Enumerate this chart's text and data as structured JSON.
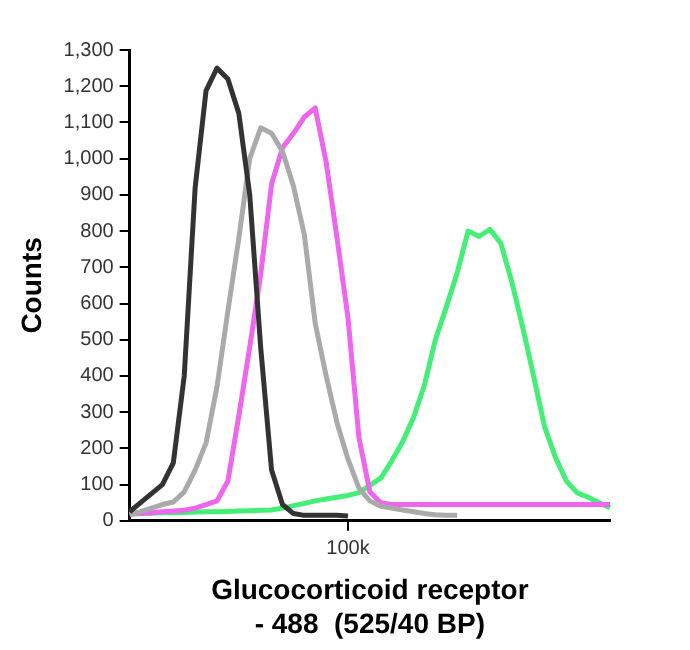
{
  "chart_data": {
    "type": "line",
    "xlabel": "Glucocorticoid receptor\n- 488  (525/40 BP)",
    "ylabel": "Counts",
    "grid": false,
    "legend": false,
    "marker": "none",
    "line_style": "solid",
    "categories": [
      null,
      null,
      null,
      null,
      null,
      null,
      null,
      null,
      null,
      null,
      null,
      null,
      null,
      null,
      null,
      null,
      null,
      null,
      null,
      null,
      "100k",
      null,
      null,
      null,
      null,
      null,
      null,
      null,
      null,
      null,
      null,
      null,
      null,
      null,
      null,
      null,
      null,
      null,
      null,
      null,
      null,
      null,
      null,
      null,
      null
    ],
    "ylim": [
      0,
      1300
    ],
    "yticks": [
      {
        "value": 0,
        "label": "0"
      },
      {
        "value": 100,
        "label": "100"
      },
      {
        "value": 200,
        "label": "200"
      },
      {
        "value": 300,
        "label": "300"
      },
      {
        "value": 400,
        "label": "400"
      },
      {
        "value": 500,
        "label": "500"
      },
      {
        "value": 600,
        "label": "600"
      },
      {
        "value": 700,
        "label": "700"
      },
      {
        "value": 800,
        "label": "800"
      },
      {
        "value": 900,
        "label": "900"
      },
      {
        "value": 1000,
        "label": "1,000"
      },
      {
        "value": 1100,
        "label": "1,100"
      },
      {
        "value": 1200,
        "label": "1,200"
      },
      {
        "value": 1300,
        "label": "1,300"
      }
    ],
    "series": [
      {
        "color": "#333333",
        "values": [
          25,
          50,
          75,
          100,
          160,
          400,
          920,
          1188,
          1250,
          1220,
          1125,
          900,
          480,
          140,
          45,
          20,
          15,
          15,
          15,
          15,
          13,
          null,
          null,
          null,
          null,
          null,
          null,
          null,
          null,
          null,
          null,
          null,
          null,
          null,
          null,
          null,
          null,
          null,
          null,
          null,
          null,
          null,
          null,
          null,
          null
        ]
      },
      {
        "color": "#aaaaaa",
        "values": [
          17,
          25,
          35,
          45,
          52,
          80,
          140,
          215,
          370,
          580,
          780,
          1000,
          1085,
          1070,
          1020,
          925,
          790,
          545,
          400,
          270,
          170,
          90,
          55,
          40,
          35,
          30,
          25,
          20,
          17,
          15,
          15,
          null,
          null,
          null,
          null,
          null,
          null,
          null,
          null,
          null,
          null,
          null,
          null,
          null,
          null
        ]
      },
      {
        "color": "#ee66ee",
        "values": [
          18,
          20,
          22,
          25,
          27,
          29,
          35,
          45,
          55,
          110,
          290,
          480,
          680,
          930,
          1030,
          1070,
          1115,
          1140,
          990,
          780,
          560,
          230,
          80,
          50,
          45,
          45,
          45,
          45,
          45,
          45,
          45,
          45,
          45,
          45,
          45,
          45,
          45,
          45,
          45,
          45,
          45,
          45,
          45,
          45,
          45
        ]
      },
      {
        "color": "#44ee77",
        "values": [
          20,
          21,
          21,
          22,
          22,
          23,
          24,
          25,
          25,
          26,
          27,
          28,
          29,
          30,
          35,
          42,
          48,
          55,
          60,
          65,
          70,
          78,
          98,
          118,
          165,
          218,
          285,
          375,
          500,
          590,
          685,
          800,
          785,
          805,
          766,
          660,
          535,
          400,
          260,
          175,
          110,
          77,
          65,
          50,
          36
        ]
      }
    ]
  }
}
